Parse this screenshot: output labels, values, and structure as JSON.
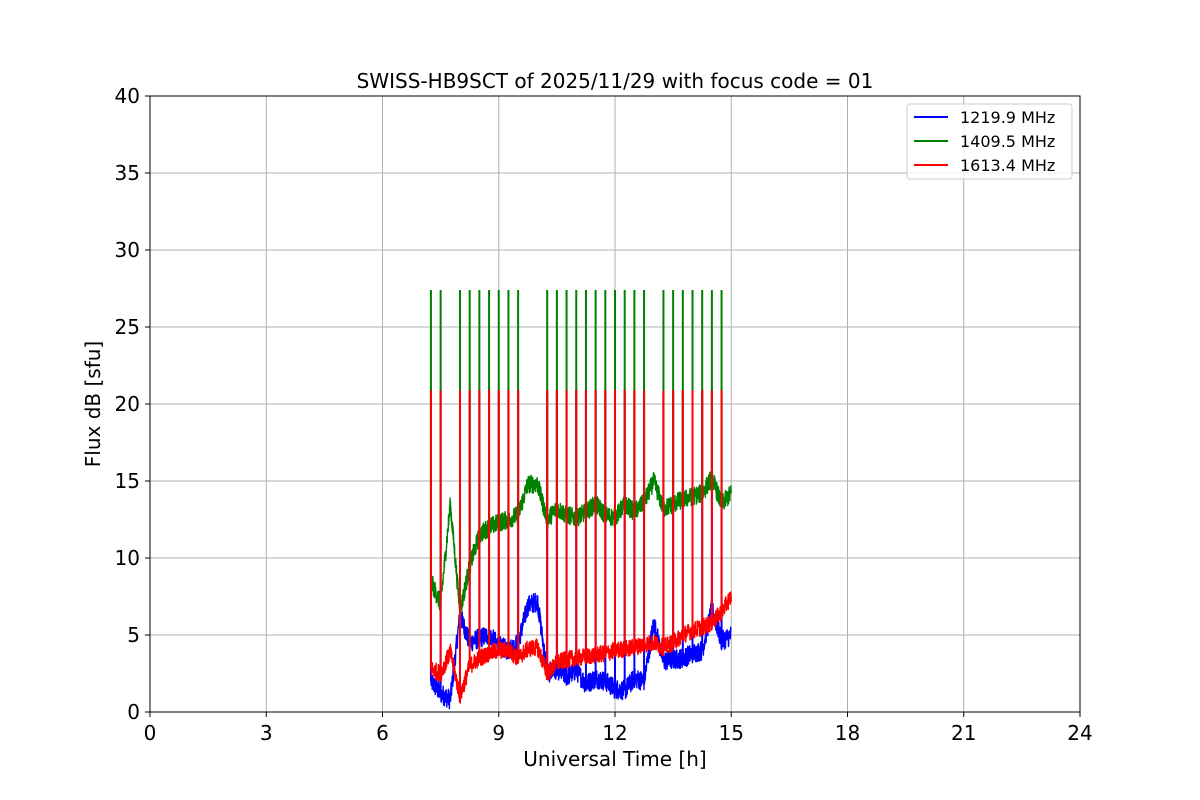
{
  "chart_data": {
    "type": "line",
    "title": "SWISS-HB9SCT of 2025/11/29 with focus code = 01",
    "xlabel": "Universal Time [h]",
    "ylabel": "Flux dB [sfu]",
    "xlim": [
      0,
      24
    ],
    "ylim": [
      0,
      40
    ],
    "xticks": [
      0,
      3,
      6,
      9,
      12,
      15,
      18,
      21,
      24
    ],
    "yticks": [
      0,
      5,
      10,
      15,
      20,
      25,
      30,
      35,
      40
    ],
    "grid": true,
    "legend_position": "top-right",
    "calibration_spikes_h": [
      7.25,
      7.5,
      8.0,
      8.25,
      8.5,
      8.75,
      9.0,
      9.25,
      9.5,
      10.25,
      10.5,
      10.75,
      11.0,
      11.25,
      11.5,
      11.75,
      12.0,
      12.25,
      12.5,
      12.75,
      13.25,
      13.5,
      13.75,
      14.0,
      14.25,
      14.5,
      14.75
    ],
    "series": [
      {
        "name": "1219.9 MHz",
        "color": "#0000ff",
        "spike_peak": 20.9,
        "x": [
          7.25,
          7.5,
          7.75,
          8.0,
          8.25,
          8.5,
          8.75,
          9.0,
          9.25,
          9.5,
          9.75,
          10.0,
          10.25,
          10.5,
          10.75,
          11.0,
          11.25,
          11.5,
          11.75,
          12.0,
          12.25,
          12.5,
          12.75,
          13.0,
          13.25,
          13.5,
          13.75,
          14.0,
          14.25,
          14.5,
          14.75,
          15.0
        ],
        "y": [
          2.0,
          1.2,
          0.8,
          6.3,
          4.5,
          4.8,
          5.0,
          4.3,
          4.0,
          4.5,
          6.9,
          7.2,
          2.5,
          2.8,
          2.3,
          2.7,
          1.8,
          2.2,
          2.0,
          1.5,
          1.4,
          2.2,
          2.0,
          5.8,
          3.3,
          3.4,
          3.5,
          3.8,
          4.0,
          6.7,
          4.6,
          5.0
        ],
        "noise": 1.3
      },
      {
        "name": "1409.5 MHz",
        "color": "#008000",
        "spike_peak": 27.4,
        "x": [
          7.25,
          7.5,
          7.75,
          8.0,
          8.25,
          8.5,
          8.75,
          9.0,
          9.25,
          9.5,
          9.75,
          10.0,
          10.25,
          10.5,
          10.75,
          11.0,
          11.25,
          11.5,
          11.75,
          12.0,
          12.25,
          12.5,
          12.75,
          13.0,
          13.25,
          13.5,
          13.75,
          14.0,
          14.25,
          14.5,
          14.75,
          15.0
        ],
        "y": [
          8.5,
          7.0,
          13.5,
          6.5,
          9.5,
          11.5,
          12.0,
          12.3,
          12.5,
          12.8,
          14.8,
          14.8,
          12.5,
          13.2,
          12.8,
          12.6,
          13.0,
          13.5,
          12.8,
          12.6,
          13.5,
          13.0,
          13.6,
          15.0,
          13.2,
          13.5,
          13.8,
          14.0,
          14.2,
          15.2,
          13.5,
          14.2
        ],
        "noise": 1.2
      },
      {
        "name": "1613.4 MHz",
        "color": "#ff0000",
        "spike_peak": 20.9,
        "x": [
          7.25,
          7.5,
          7.75,
          8.0,
          8.25,
          8.5,
          8.75,
          9.0,
          9.25,
          9.5,
          9.75,
          10.0,
          10.25,
          10.5,
          10.75,
          11.0,
          11.25,
          11.5,
          11.75,
          12.0,
          12.25,
          12.5,
          12.75,
          13.0,
          13.25,
          13.5,
          13.75,
          14.0,
          14.25,
          14.5,
          14.75,
          15.0
        ],
        "y": [
          2.8,
          2.5,
          3.9,
          1.0,
          3.0,
          3.5,
          3.8,
          4.0,
          4.0,
          3.5,
          4.1,
          4.2,
          2.5,
          3.2,
          3.4,
          3.5,
          3.6,
          3.7,
          3.8,
          4.0,
          4.1,
          4.2,
          4.4,
          4.5,
          4.2,
          4.5,
          5.0,
          5.3,
          5.5,
          5.8,
          6.5,
          7.5
        ],
        "noise": 1.1
      }
    ]
  }
}
